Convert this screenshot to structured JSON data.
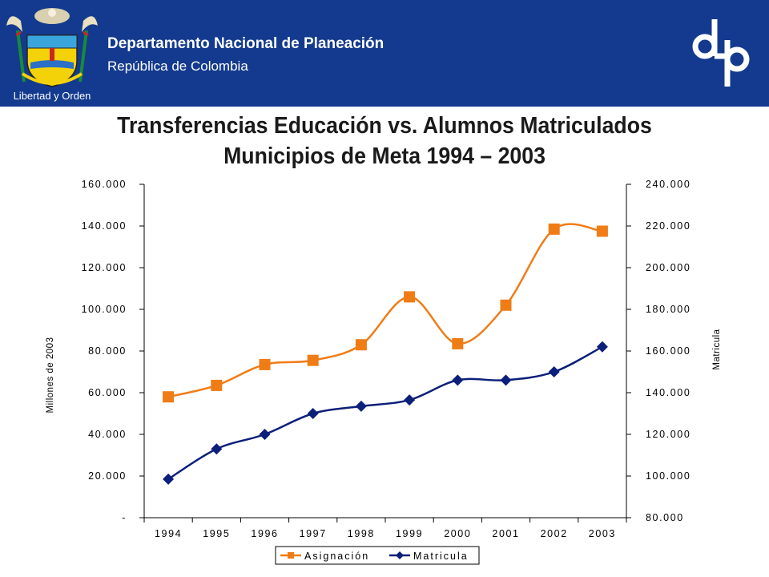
{
  "header": {
    "org_name": "Departamento Nacional de Planeación",
    "country": "República de Colombia",
    "motto": "Libertad y Orden",
    "bg_color": "#133a8e",
    "crest_icon": "colombia-coat-of-arms-icon",
    "logo_icon": "dnp-logo-icon"
  },
  "chart_data": {
    "type": "line",
    "title": "Transferencias Educación vs. Alumnos Matriculados",
    "subtitle": "Municipios de Meta 1994 – 2003",
    "categories": [
      "1994",
      "1995",
      "1996",
      "1997",
      "1998",
      "1999",
      "2000",
      "2001",
      "2002",
      "2003"
    ],
    "y_left": {
      "label": "Millones de 2003",
      "range": [
        0,
        160000
      ],
      "ticks": [
        "-",
        "20.000",
        "40.000",
        "60.000",
        "80.000",
        "100.000",
        "120.000",
        "140.000",
        "160.000"
      ]
    },
    "y_right": {
      "label": "Matricula",
      "range": [
        80000,
        240000
      ],
      "ticks": [
        "80.000",
        "100.000",
        "120.000",
        "140.000",
        "160.000",
        "180.000",
        "200.000",
        "220.000",
        "240.000"
      ]
    },
    "series": [
      {
        "name": "Asignación",
        "axis": "left",
        "color": "#f07c16",
        "marker": "square",
        "values": [
          58000,
          63500,
          73500,
          75500,
          83000,
          106000,
          83500,
          102000,
          138500,
          137500
        ]
      },
      {
        "name": "Matricula",
        "axis": "right",
        "color": "#0c1f7a",
        "marker": "diamond",
        "values": [
          98500,
          113000,
          120000,
          130000,
          133500,
          136500,
          146000,
          146000,
          150000,
          162000
        ]
      }
    ],
    "grid": false,
    "legend_position": "bottom"
  }
}
